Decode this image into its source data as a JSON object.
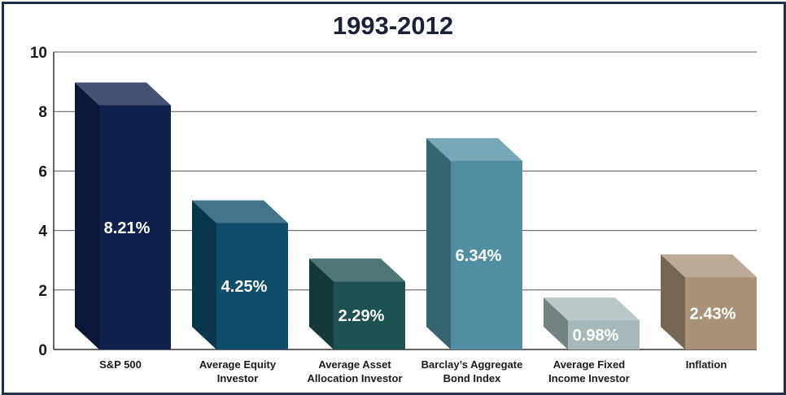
{
  "chart_data": {
    "type": "bar",
    "title": "1993-2012",
    "categories": [
      [
        "S&P 500"
      ],
      [
        "Average Equity",
        "Investor"
      ],
      [
        "Average Asset",
        "Allocation Investor"
      ],
      [
        "Barclay’s Aggregate",
        "Bond Index"
      ],
      [
        "Average Fixed",
        "Income Investor"
      ],
      [
        "Inflation"
      ]
    ],
    "values": [
      8.21,
      4.25,
      2.29,
      6.34,
      0.98,
      2.43
    ],
    "data_labels": [
      "8.21%",
      "4.25%",
      "2.29%",
      "6.34%",
      "0.98%",
      "2.43%"
    ],
    "colors": [
      "#10214e",
      "#0d4d6b",
      "#1c5250",
      "#4f8fa1",
      "#a6b8ba",
      "#a8927a"
    ],
    "ylim": [
      0,
      10
    ],
    "yticks": [
      "0",
      "2",
      "4",
      "6",
      "8",
      "10"
    ],
    "grid": true
  }
}
